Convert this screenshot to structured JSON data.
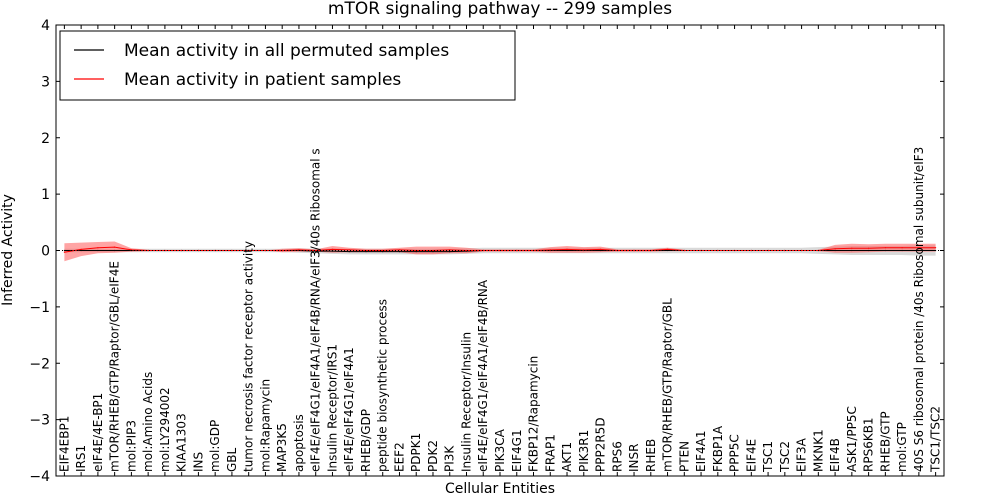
{
  "chart_data": {
    "type": "line",
    "title": "mTOR signaling pathway -- 299 samples",
    "xlabel": "Cellular Entities",
    "ylabel": "Inferred Activity",
    "ylim": [
      -4,
      4
    ],
    "yticks": [
      -4,
      -3,
      -2,
      -1,
      0,
      1,
      2,
      3,
      4
    ],
    "ytick_labels": [
      "−4",
      "−3",
      "−2",
      "−1",
      "0",
      "1",
      "2",
      "3",
      "4"
    ],
    "grid": false,
    "legend_position": "top-left",
    "categories": [
      "EIF4EBP1",
      "IRS1",
      "eIF4E/4E-BP1",
      "mTOR/RHEB/GTP/Raptor/GBL/eIF4E",
      "mol:PIP3",
      "mol:Amino Acids",
      "mol:LY294002",
      "KIAA1303",
      "INS",
      "mol:GDP",
      "GBL",
      "tumor necrosis factor receptor activity",
      "mol:Rapamycin",
      "MAP3K5",
      "apoptosis",
      "eIF4E/eIF4G1/eIF4A1/eIF4B/RNA/eIF3/40s Ribosomal s",
      "Insulin Receptor/IRS1",
      "eIF4E/eIF4G1/eIF4A1",
      "RHEB/GDP",
      "peptide biosynthetic process",
      "EEF2",
      "PDPK1",
      "PDK2",
      "PI3K",
      "Insulin Receptor/Insulin",
      "eIF4E/eIF4G1/eIF4A1/eIF4B/RNA",
      "PIK3CA",
      "EIF4G1",
      "FKBP12/Rapamycin",
      "FRAP1",
      "AKT1",
      "PIK3R1",
      "PPP2R5D",
      "RPS6",
      "INSR",
      "RHEB",
      "mTOR/RHEB/GTP/Raptor/GBL",
      "PTEN",
      "EIF4A1",
      "FKBP1A",
      "PPP5C",
      "EIF4E",
      "TSC1",
      "TSC2",
      "EIF3A",
      "MKNK1",
      "EIF4B",
      "ASK1/PP5C",
      "RPS6KB1",
      "RHEB/GTP",
      "mol:GTP",
      "40S S6 ribosomal protein /40s Ribosomal subunit/eIF3",
      "TSC1/TSC2"
    ],
    "series": [
      {
        "name": "Mean activity in all permuted samples",
        "color": "#000000",
        "band_color": "#b4b4b4",
        "values": [
          0,
          0,
          0,
          0,
          0,
          0,
          0,
          0,
          0,
          0,
          0,
          0,
          0,
          0,
          0,
          -0.01,
          -0.01,
          -0.02,
          -0.02,
          -0.02,
          -0.02,
          -0.02,
          -0.02,
          -0.02,
          -0.01,
          0,
          0,
          0,
          0,
          0,
          0,
          0,
          0,
          0,
          0,
          0,
          0,
          0,
          0,
          0,
          0,
          0,
          0,
          0,
          0,
          0,
          0,
          0,
          0,
          0,
          0,
          0,
          0
        ],
        "band": [
          0.03,
          0.03,
          0.03,
          0.03,
          0.03,
          0.03,
          0.03,
          0.03,
          0.03,
          0.03,
          0.03,
          0.03,
          0.03,
          0.03,
          0.04,
          0.04,
          0.05,
          0.05,
          0.05,
          0.05,
          0.05,
          0.05,
          0.05,
          0.05,
          0.05,
          0.05,
          0.05,
          0.05,
          0.05,
          0.05,
          0.05,
          0.05,
          0.05,
          0.05,
          0.05,
          0.05,
          0.05,
          0.05,
          0.05,
          0.05,
          0.05,
          0.05,
          0.05,
          0.05,
          0.05,
          0.06,
          0.07,
          0.08,
          0.08,
          0.08,
          0.08,
          0.09,
          0.09
        ]
      },
      {
        "name": "Mean activity in patient samples",
        "color": "#ff0000",
        "band_color": "#ff5a5a",
        "values": [
          -0.03,
          0.02,
          0.05,
          0.06,
          0.01,
          0,
          0,
          0,
          0,
          0,
          0,
          0,
          0,
          0,
          0.01,
          0,
          0.02,
          0.01,
          0,
          0,
          0.01,
          0,
          0,
          0.01,
          0,
          0,
          0,
          0,
          0,
          0.01,
          0.02,
          0.01,
          0.02,
          0,
          0,
          0,
          0.02,
          0,
          0,
          0,
          0,
          0,
          0,
          0,
          0,
          0,
          0.03,
          0.04,
          0.04,
          0.05,
          0.05,
          0.05,
          0.05
        ],
        "band": [
          0.16,
          0.12,
          0.1,
          0.1,
          0.03,
          0.01,
          0,
          0,
          0,
          0,
          0,
          0,
          0,
          0.03,
          0.03,
          0.02,
          0.06,
          0.04,
          0.03,
          0.03,
          0.04,
          0.07,
          0.07,
          0.06,
          0.05,
          0.02,
          0.02,
          0.02,
          0.02,
          0.05,
          0.06,
          0.05,
          0.05,
          0.02,
          0.02,
          0.02,
          0.03,
          0.01,
          0,
          0,
          0,
          0,
          0,
          0,
          0,
          0.01,
          0.07,
          0.08,
          0.07,
          0.07,
          0.07,
          0.07,
          0.07
        ]
      }
    ]
  }
}
